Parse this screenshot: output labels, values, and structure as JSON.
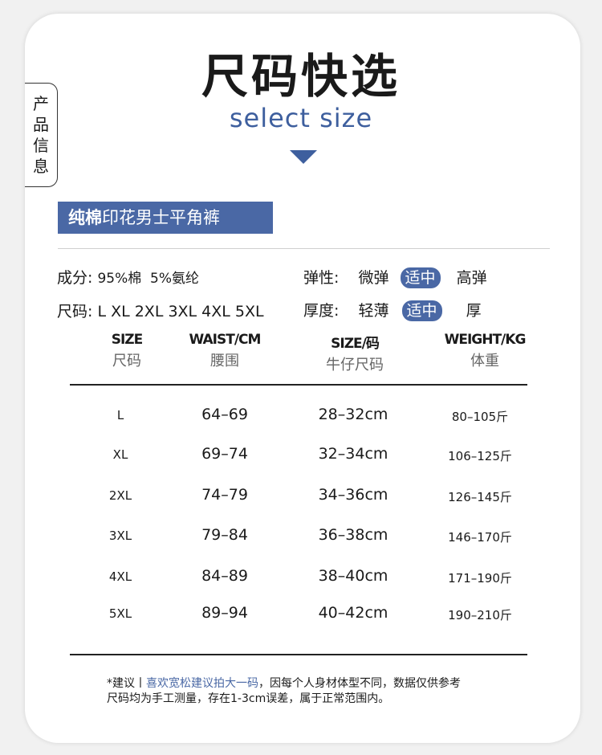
{
  "side_tab": {
    "label": [
      "产",
      "品",
      "信",
      "息"
    ]
  },
  "header": {
    "title": "尺码快选",
    "subtitle": "select size"
  },
  "banner": {
    "bold": "纯棉",
    "rest": "印花男士平角裤"
  },
  "attributes": {
    "composition_label": "成分:",
    "composition_value": "95%棉  5%氨纶",
    "sizes_label": "尺码:",
    "sizes_value": "L XL 2XL 3XL 4XL 5XL",
    "elasticity_label": "弹性:",
    "elasticity_options": [
      "微弹",
      "适中",
      "高弹"
    ],
    "elasticity_selected": "适中",
    "thickness_label": "厚度:",
    "thickness_options": [
      "轻薄",
      "适中",
      "厚"
    ],
    "thickness_selected": "适中"
  },
  "table": {
    "headers": [
      {
        "en": "SIZE",
        "cn": "尺码"
      },
      {
        "en": "WAIST/CM",
        "cn": "腰围"
      },
      {
        "en": "SIZE/码",
        "cn": "牛仔尺码"
      },
      {
        "en": "WEIGHT/KG",
        "cn": "体重"
      }
    ],
    "rows": [
      [
        "L",
        "64–69",
        "28–32cm",
        "80–105斤"
      ],
      [
        "XL",
        "69–74",
        "32–34cm",
        "106–125斤"
      ],
      [
        "2XL",
        "74–79",
        "34–36cm",
        "126–145斤"
      ],
      [
        "3XL",
        "79–84",
        "36–38cm",
        "146–170斤"
      ],
      [
        "4XL",
        "84–89",
        "38–40cm",
        "171–190斤"
      ],
      [
        "5XL",
        "89–94",
        "40–42cm",
        "190–210斤"
      ]
    ]
  },
  "note": {
    "prefix": "*建议丨",
    "highlight": "喜欢宽松建议拍大一码",
    "line1_rest": "，因每个人身材体型不同，数据仅供参考",
    "line2": "尺码均为手工测量，存在1-3cm误差，属于正常范围内。"
  },
  "colors": {
    "accent": "#4a68a5",
    "text": "#1a1a1a"
  }
}
